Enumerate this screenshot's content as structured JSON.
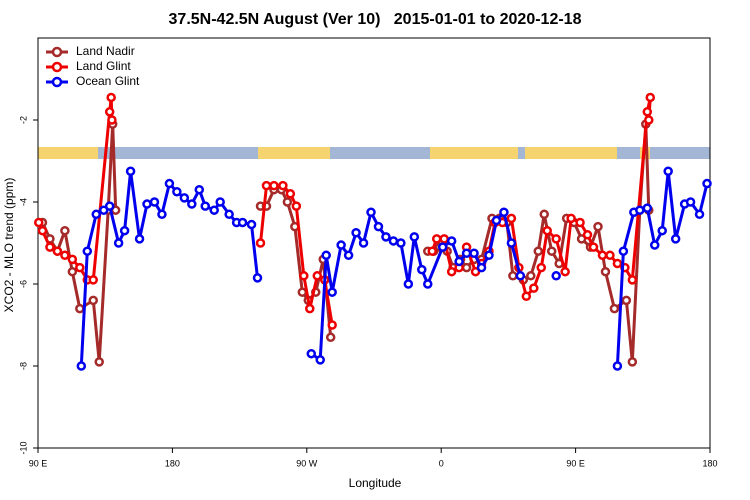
{
  "chart_data": {
    "type": "line",
    "title": "37.5N-42.5N August (Ver 10)   2015-01-01 to 2020-12-18",
    "x_label": "Longitude",
    "y_label": "XCO2 - MLO trend (ppm)",
    "xlim": [
      90,
      540
    ],
    "xticks": [
      {
        "value": 90,
        "label": "90 E"
      },
      180,
      {
        "value": 270,
        "label": "90 W"
      },
      {
        "value": 360,
        "label": "0"
      },
      {
        "value": 450,
        "label": "90 E"
      },
      {
        "value": 540,
        "label": "180"
      }
    ],
    "ylim": [
      -10,
      0
    ],
    "yticks": [
      -10,
      -8,
      -6,
      -4,
      -2
    ],
    "legend": "top-left",
    "series": [
      {
        "name": "Land Nadir",
        "color": "#a52a2a",
        "x": [
          93,
          98,
          103,
          108,
          113,
          118,
          127,
          131,
          137,
          140,
          142,
          200,
          239,
          243,
          248,
          253,
          257,
          262,
          267,
          271,
          276,
          281,
          286,
          330,
          351,
          355,
          359,
          364,
          368,
          373,
          377,
          382,
          387,
          394,
          399,
          404,
          408,
          415,
          420,
          425,
          429,
          434,
          439,
          444,
          449,
          454,
          460,
          465,
          470,
          476,
          484,
          488,
          493,
          497,
          499
        ],
        "values": [
          -4.5,
          -4.9,
          -5.2,
          -4.7,
          -5.7,
          -6.6,
          -6.4,
          -7.9,
          -4.2,
          -2.1,
          -4.2,
          null,
          -4.1,
          -4.1,
          -3.7,
          -3.7,
          -4.0,
          -4.6,
          -6.2,
          -6.4,
          -6.2,
          -5.4,
          -7.3,
          null,
          -5.2,
          -5.2,
          -5.1,
          -5.2,
          -5.6,
          -5.4,
          -5.6,
          -5.4,
          -5.4,
          -4.4,
          -4.4,
          -4.5,
          -5.8,
          -5.9,
          -5.8,
          -5.2,
          -4.3,
          -5.2,
          -5.5,
          -4.4,
          -4.5,
          -4.9,
          -5.1,
          -4.6,
          -5.7,
          -6.6,
          -6.4,
          -7.9,
          -4.2,
          -2.1,
          -4.2
        ]
      },
      {
        "name": "Land Glint",
        "color": "#ee0000",
        "x": [
          90.5,
          93,
          98,
          103,
          108,
          113,
          118,
          123,
          127,
          138,
          139,
          139.5,
          200,
          239,
          243,
          248,
          254,
          259,
          263,
          268,
          272,
          277,
          282,
          287,
          330,
          354,
          357,
          362,
          367,
          372,
          377,
          383,
          387,
          392,
          396,
          401,
          407,
          412,
          417,
          422,
          427,
          431,
          437,
          443,
          447,
          453,
          458,
          462,
          468,
          473,
          478,
          483,
          488,
          498,
          500,
          499
        ],
        "values": [
          -4.5,
          -4.7,
          -5.1,
          -5.2,
          -5.3,
          -5.4,
          -5.6,
          -5.9,
          -5.9,
          -1.8,
          -1.45,
          -2.0,
          null,
          -5.0,
          -3.6,
          -3.6,
          -3.6,
          -3.8,
          -4.1,
          -5.8,
          -6.6,
          -5.8,
          -5.9,
          -7.0,
          null,
          -5.2,
          -4.9,
          -4.9,
          -5.7,
          -5.6,
          -5.1,
          -5.7,
          -5.5,
          -5.2,
          -4.5,
          -4.5,
          -4.4,
          -5.6,
          -6.3,
          -6.1,
          -5.6,
          -4.7,
          -4.9,
          -5.7,
          -4.4,
          -4.5,
          -4.8,
          -5.1,
          -5.3,
          -5.3,
          -5.5,
          -5.6,
          -5.9,
          -1.8,
          -1.45,
          -2.0
        ]
      },
      {
        "name": "Ocean Glint",
        "color": "#0000ee",
        "x": [
          119,
          123,
          129,
          134,
          138,
          144,
          148,
          152,
          158,
          163,
          168,
          173,
          178,
          183,
          188,
          193,
          198,
          202,
          208,
          212,
          218,
          223,
          227,
          233,
          237,
          255,
          273,
          279,
          283,
          287,
          293,
          298,
          303,
          308,
          313,
          318,
          323,
          328,
          333,
          338,
          342,
          347,
          351,
          361,
          367,
          372,
          377,
          382,
          387,
          392,
          397,
          402,
          407,
          413,
          425,
          437,
          457,
          478,
          482,
          489,
          493,
          498,
          503,
          508,
          512,
          517,
          523,
          527,
          533,
          538
        ],
        "values": [
          -8.0,
          -5.2,
          -4.3,
          -4.2,
          -4.1,
          -5.0,
          -4.7,
          -3.25,
          -4.9,
          -4.05,
          -4.0,
          -4.3,
          -3.55,
          -3.75,
          -3.9,
          -4.05,
          -3.7,
          -4.1,
          -4.2,
          -4.0,
          -4.3,
          -4.5,
          -4.5,
          -4.55,
          -5.85,
          null,
          -7.7,
          -7.85,
          -5.3,
          -6.2,
          -5.05,
          -5.3,
          -4.75,
          -5.0,
          -4.25,
          -4.6,
          -4.85,
          -4.95,
          -5.0,
          -6.0,
          -4.85,
          -5.65,
          -6.0,
          -5.1,
          -4.95,
          -5.45,
          -5.25,
          -5.25,
          -5.6,
          -5.3,
          -4.45,
          -4.25,
          -5.0,
          -5.8,
          null,
          -5.8,
          null,
          -8.0,
          -5.2,
          -4.25,
          -4.2,
          -4.15,
          -5.05,
          -4.7,
          -3.25,
          -4.9,
          -4.05,
          -4.0,
          -4.3,
          -3.55
        ]
      }
    ]
  }
}
